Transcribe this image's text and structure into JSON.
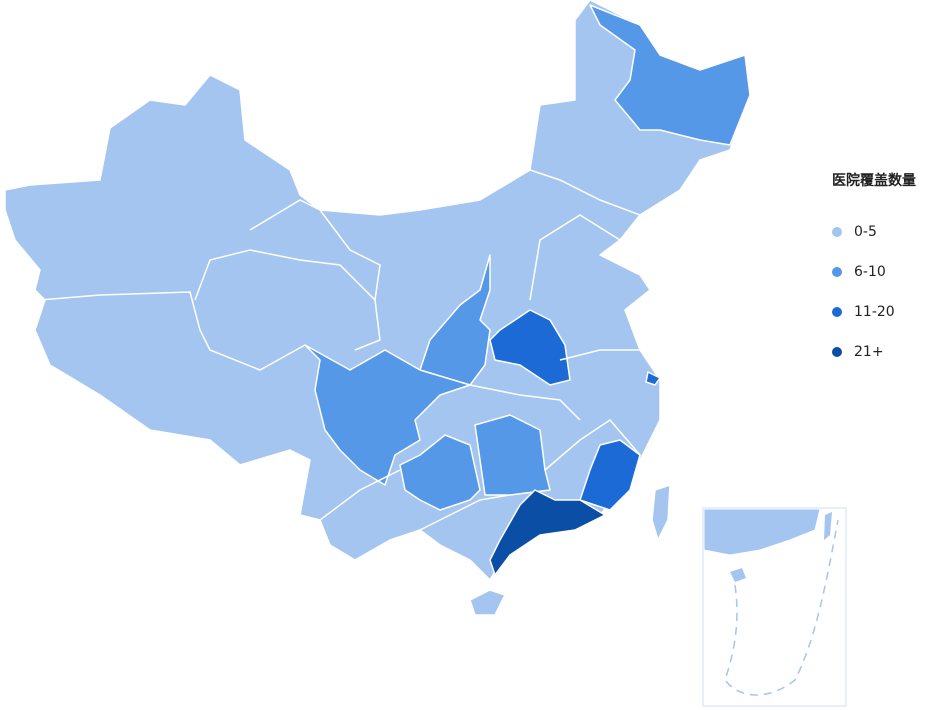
{
  "legend": {
    "title": "医院覆盖数量",
    "items": [
      {
        "label": "0-5",
        "color": "#a3c5f0"
      },
      {
        "label": "6-10",
        "color": "#5598e8"
      },
      {
        "label": "11-20",
        "color": "#1c6ad6"
      },
      {
        "label": "21+",
        "color": "#0a4ea6"
      }
    ]
  },
  "map": {
    "border_color": "#ffffff",
    "inset_border_color": "#cfe0f5"
  }
}
